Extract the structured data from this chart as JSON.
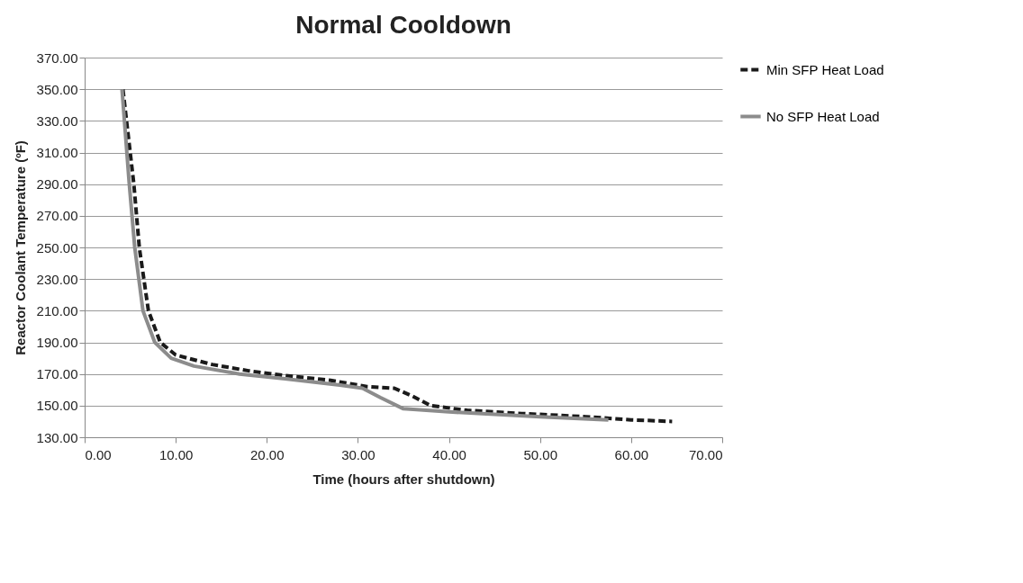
{
  "chart_data": {
    "type": "line",
    "title": "Normal Cooldown",
    "xlabel": "Time (hours after shutdown)",
    "ylabel": "Reactor Coolant Temperature (ºF)",
    "series": [
      {
        "name": "Min SFP Heat Load",
        "color": "#1a1a1a",
        "line_style": "dashed",
        "x": [
          4.2,
          5.4,
          6.0,
          7.0,
          8.3,
          10,
          14,
          18,
          22,
          27,
          31,
          34,
          36,
          38,
          42,
          48,
          55,
          60,
          64.5
        ],
        "values": [
          350,
          290,
          250,
          210,
          190,
          182,
          176,
          172,
          169,
          166,
          162,
          161,
          156,
          150,
          147,
          145,
          143,
          141,
          140
        ]
      },
      {
        "name": "No SFP Heat Load",
        "color": "#8c8c8c",
        "line_style": "solid",
        "x": [
          4.1,
          4.9,
          5.5,
          6.4,
          7.7,
          9.5,
          12,
          17,
          22,
          28,
          30.5,
          32.5,
          35,
          40,
          50,
          57.5
        ],
        "values": [
          350,
          290,
          250,
          210,
          190,
          180,
          175,
          170,
          167,
          163,
          161,
          155,
          148,
          146,
          143,
          141
        ]
      }
    ],
    "xlim": [
      0,
      70
    ],
    "ylim": [
      130,
      370
    ],
    "xticks": [
      {
        "value": 0,
        "label": "0.00"
      },
      {
        "value": 10,
        "label": "10.00"
      },
      {
        "value": 20,
        "label": "20.00"
      },
      {
        "value": 30,
        "label": "30.00"
      },
      {
        "value": 40,
        "label": "40.00"
      },
      {
        "value": 50,
        "label": "50.00"
      },
      {
        "value": 60,
        "label": "60.00"
      },
      {
        "value": 70,
        "label": "70.00"
      }
    ],
    "yticks": [
      {
        "value": 130,
        "label": "130.00"
      },
      {
        "value": 150,
        "label": "150.00"
      },
      {
        "value": 170,
        "label": "170.00"
      },
      {
        "value": 190,
        "label": "190.00"
      },
      {
        "value": 210,
        "label": "210.00"
      },
      {
        "value": 230,
        "label": "230.00"
      },
      {
        "value": 250,
        "label": "250.00"
      },
      {
        "value": 270,
        "label": "270.00"
      },
      {
        "value": 290,
        "label": "290.00"
      },
      {
        "value": 310,
        "label": "310.00"
      },
      {
        "value": 330,
        "label": "330.00"
      },
      {
        "value": 350,
        "label": "350.00"
      },
      {
        "value": 370,
        "label": "370.00"
      }
    ],
    "grid": "y",
    "legend": "right"
  }
}
